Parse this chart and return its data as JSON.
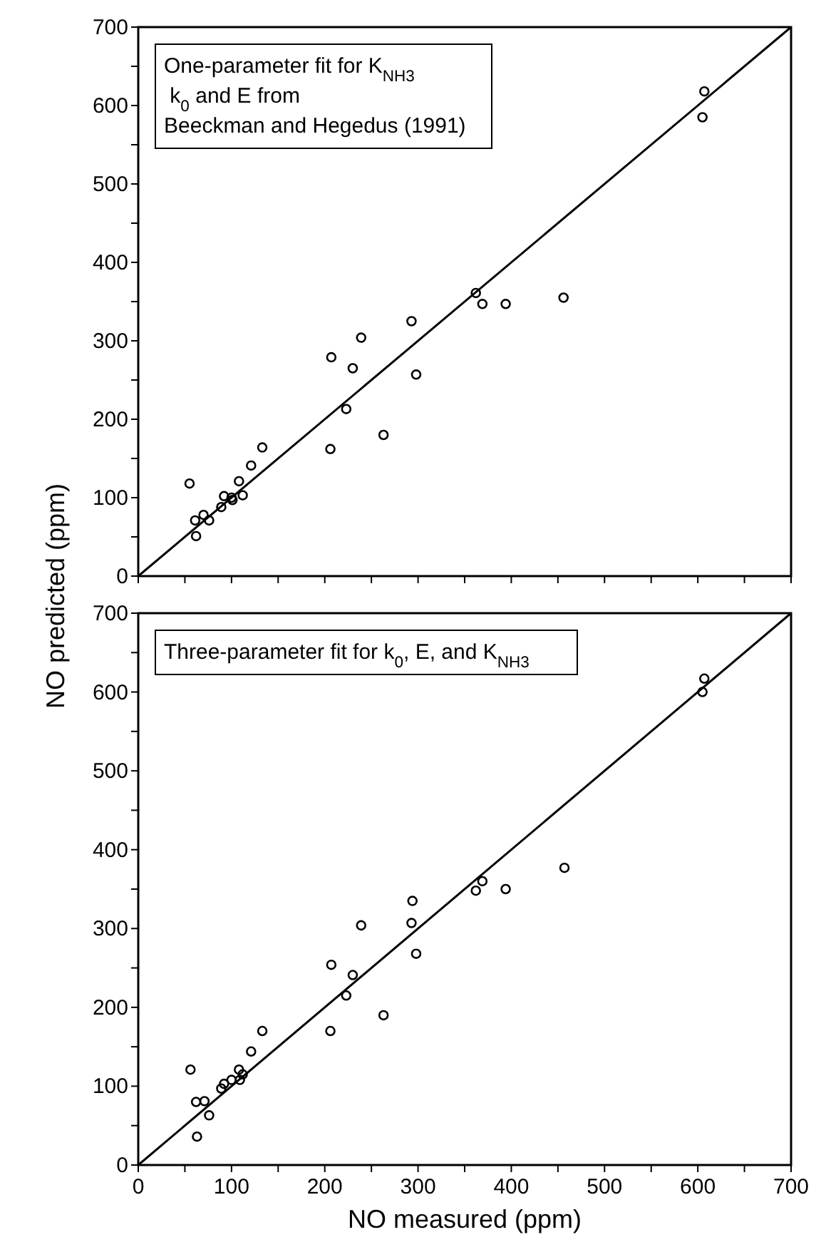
{
  "chart_data": [
    {
      "type": "scatter",
      "ylabel": "NO predicted (ppm)",
      "annotations": [
        "One-parameter fit for K$_{NH3}$",
        " k$_{0}$ and E from",
        "Beeckman and Hegedus (1991)"
      ],
      "xlim": [
        0,
        700
      ],
      "ylim": [
        0,
        700
      ],
      "xticks": [
        0,
        {
          "value": 50,
          "label": null
        },
        100,
        {
          "value": 150,
          "label": null
        },
        200,
        {
          "value": 250,
          "label": null
        },
        300,
        {
          "value": 350,
          "label": null
        },
        400,
        {
          "value": 450,
          "label": null
        },
        500,
        {
          "value": 550,
          "label": null
        },
        600,
        {
          "value": 650,
          "label": null
        },
        700
      ],
      "yticks": [
        0,
        {
          "value": 50,
          "label": null
        },
        100,
        {
          "value": 150,
          "label": null
        },
        200,
        {
          "value": 250,
          "label": null
        },
        300,
        {
          "value": 350,
          "label": null
        },
        400,
        {
          "value": 450,
          "label": null
        },
        500,
        {
          "value": 550,
          "label": null
        },
        600,
        {
          "value": 650,
          "label": null
        },
        700
      ],
      "tick_labels": "y",
      "grid": false,
      "marker": "circle",
      "series": [
        {
          "color": "#000000",
          "x": [
            55,
            61,
            62,
            70,
            76,
            89,
            92,
            100,
            101,
            108,
            112,
            121,
            133,
            206,
            207,
            223,
            230,
            239,
            263,
            293,
            298,
            362,
            369,
            394,
            456,
            605,
            607
          ],
          "values": [
            118,
            71,
            51,
            78,
            71,
            88,
            102,
            100,
            97,
            121,
            103,
            141,
            164,
            162,
            279,
            213,
            265,
            304,
            180,
            325,
            257,
            361,
            347,
            347,
            355,
            585,
            618
          ]
        },
        {
          "type": "line",
          "marker": "none",
          "color": "#000000",
          "x": [
            0,
            700
          ],
          "values": [
            0,
            700
          ]
        }
      ]
    },
    {
      "type": "scatter",
      "xlabel": "NO measured (ppm)",
      "annotations": [
        "Three-parameter fit for k$_{0}$, E, and K$_{NH3}$"
      ],
      "xlim": [
        0,
        700
      ],
      "ylim": [
        0,
        700
      ],
      "xticks": [
        0,
        {
          "value": 50,
          "label": null
        },
        100,
        {
          "value": 150,
          "label": null
        },
        200,
        {
          "value": 250,
          "label": null
        },
        300,
        {
          "value": 350,
          "label": null
        },
        400,
        {
          "value": 450,
          "label": null
        },
        500,
        {
          "value": 550,
          "label": null
        },
        600,
        {
          "value": 650,
          "label": null
        },
        700
      ],
      "yticks": [
        0,
        {
          "value": 50,
          "label": null
        },
        100,
        {
          "value": 150,
          "label": null
        },
        200,
        {
          "value": 250,
          "label": null
        },
        300,
        {
          "value": 350,
          "label": null
        },
        400,
        {
          "value": 450,
          "label": null
        },
        500,
        {
          "value": 550,
          "label": null
        },
        600,
        {
          "value": 650,
          "label": null
        },
        700
      ],
      "grid": false,
      "marker": "circle",
      "series": [
        {
          "color": "#000000",
          "x": [
            56,
            62,
            63,
            71,
            76,
            89,
            92,
            100,
            108,
            109,
            112,
            121,
            133,
            206,
            207,
            223,
            230,
            239,
            263,
            293,
            294,
            298,
            362,
            369,
            394,
            457,
            605,
            607
          ],
          "values": [
            121,
            80,
            36,
            81,
            63,
            97,
            103,
            108,
            121,
            108,
            115,
            144,
            170,
            170,
            254,
            215,
            241,
            304,
            190,
            307,
            335,
            268,
            348,
            360,
            350,
            377,
            600,
            617
          ]
        },
        {
          "type": "line",
          "marker": "none",
          "color": "#000000",
          "x": [
            0,
            700
          ],
          "values": [
            0,
            700
          ]
        }
      ]
    }
  ]
}
